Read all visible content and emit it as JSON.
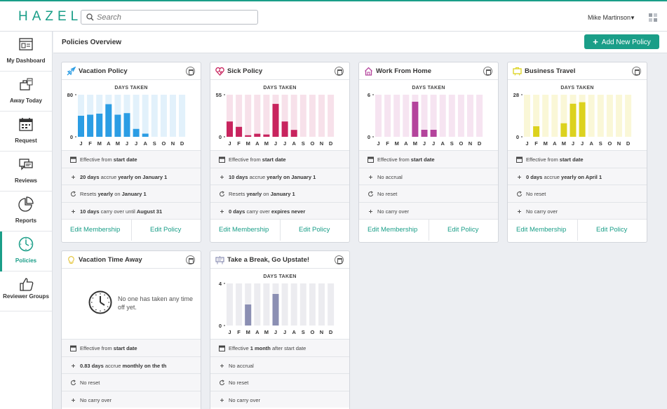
{
  "app": {
    "logo": "HAZEL",
    "accent": "#1a9e88"
  },
  "search": {
    "placeholder": "Search"
  },
  "user": {
    "name": "Mike Martinson"
  },
  "sidebar": {
    "items": [
      {
        "label": "My Dashboard",
        "icon": "dashboard-icon"
      },
      {
        "label": "Away Today",
        "icon": "away-icon"
      },
      {
        "label": "Request",
        "icon": "calendar-icon"
      },
      {
        "label": "Reviews",
        "icon": "chat-icon"
      },
      {
        "label": "Reports",
        "icon": "pie-chart-icon"
      },
      {
        "label": "Policies",
        "icon": "clock-icon",
        "active": true
      },
      {
        "label": "Reviewer Groups",
        "icon": "thumbs-up-icon"
      }
    ]
  },
  "page": {
    "title": "Policies Overview",
    "add_button": "Add New Policy"
  },
  "months": [
    "J",
    "F",
    "M",
    "A",
    "M",
    "J",
    "J",
    "A",
    "S",
    "O",
    "N",
    "D"
  ],
  "chart_heading": "DAYS TAKEN",
  "footer": {
    "edit_membership": "Edit Membership",
    "edit_policy": "Edit Policy"
  },
  "policies": [
    {
      "title": "Vacation Policy",
      "icon": "plane-icon",
      "color": "#2b9de4",
      "light": "#e2f1fb",
      "ymax": "80",
      "ymin": "0",
      "max": 80,
      "values": [
        40,
        42,
        44,
        62,
        42,
        45,
        15,
        6,
        0,
        0,
        0,
        0
      ],
      "rows": [
        {
          "icon": "calendar-icon",
          "parts": [
            [
              "Effective from ",
              false
            ],
            [
              "start date",
              true
            ]
          ]
        },
        {
          "icon": "plus-icon",
          "parts": [
            [
              "20 days",
              true
            ],
            [
              " accrue ",
              false
            ],
            [
              "yearly on January 1",
              true
            ]
          ]
        },
        {
          "icon": "reset-icon",
          "parts": [
            [
              "Resets ",
              false
            ],
            [
              "yearly",
              true
            ],
            [
              " on ",
              false
            ],
            [
              "January 1",
              true
            ]
          ]
        },
        {
          "icon": "plus-icon",
          "parts": [
            [
              "10 days",
              true
            ],
            [
              " carry over until ",
              false
            ],
            [
              "August 31",
              true
            ]
          ]
        }
      ]
    },
    {
      "title": "Sick Policy",
      "icon": "heart-icon",
      "color": "#c8245e",
      "light": "#f7e1ea",
      "ymax": "55",
      "ymin": "0",
      "max": 55,
      "values": [
        20,
        13,
        2,
        4,
        3,
        43,
        20,
        9,
        0,
        0,
        0,
        0
      ],
      "rows": [
        {
          "icon": "calendar-icon",
          "parts": [
            [
              "Effective from ",
              false
            ],
            [
              "start date",
              true
            ]
          ]
        },
        {
          "icon": "plus-icon",
          "parts": [
            [
              "10 days",
              true
            ],
            [
              " accrue ",
              false
            ],
            [
              "yearly on January 1",
              true
            ]
          ]
        },
        {
          "icon": "reset-icon",
          "parts": [
            [
              "Resets ",
              false
            ],
            [
              "yearly",
              true
            ],
            [
              " on ",
              false
            ],
            [
              "January 1",
              true
            ]
          ]
        },
        {
          "icon": "plus-icon",
          "parts": [
            [
              "0 days",
              true
            ],
            [
              " carry over ",
              false
            ],
            [
              "expires never",
              true
            ]
          ]
        }
      ]
    },
    {
      "title": "Work From Home",
      "icon": "house-icon",
      "color": "#b4449c",
      "light": "#f6e4f1",
      "ymax": "6",
      "ymin": "0",
      "max": 6,
      "values": [
        0,
        0,
        0,
        0,
        5,
        1,
        1,
        0,
        0,
        0,
        0,
        0
      ],
      "rows": [
        {
          "icon": "calendar-icon",
          "parts": [
            [
              "Effective from ",
              false
            ],
            [
              "start date",
              true
            ]
          ]
        },
        {
          "icon": "plus-icon",
          "parts": [
            [
              "No accrual",
              false
            ]
          ]
        },
        {
          "icon": "reset-icon",
          "parts": [
            [
              "No reset",
              false
            ]
          ]
        },
        {
          "icon": "plus-icon",
          "parts": [
            [
              "No carry over",
              false
            ]
          ]
        }
      ]
    },
    {
      "title": "Business Travel",
      "icon": "briefcase-icon",
      "color": "#dcd21e",
      "light": "#faf7d7",
      "ymax": "28",
      "ymin": "0",
      "max": 28,
      "values": [
        0,
        7,
        0,
        0,
        9,
        22,
        23,
        0,
        0,
        0,
        0,
        0
      ],
      "rows": [
        {
          "icon": "calendar-icon",
          "parts": [
            [
              "Effective from ",
              false
            ],
            [
              "start date",
              true
            ]
          ]
        },
        {
          "icon": "plus-icon",
          "parts": [
            [
              "0 days",
              true
            ],
            [
              " accrue ",
              false
            ],
            [
              "yearly on April 1",
              true
            ]
          ]
        },
        {
          "icon": "reset-icon",
          "parts": [
            [
              "No reset",
              false
            ]
          ]
        },
        {
          "icon": "plus-icon",
          "parts": [
            [
              "No carry over",
              false
            ]
          ]
        }
      ]
    },
    {
      "title": "Vacation Time Away",
      "icon": "bulb-icon",
      "color": "#e6c94a",
      "light": "#ffffff",
      "empty_message": "No one has taken any time off yet.",
      "rows": [
        {
          "icon": "calendar-icon",
          "parts": [
            [
              "Effective from ",
              false
            ],
            [
              "start date",
              true
            ]
          ]
        },
        {
          "icon": "plus-icon",
          "parts": [
            [
              "0.83 days",
              true
            ],
            [
              " accrue ",
              false
            ],
            [
              "monthly on the th",
              true
            ]
          ]
        },
        {
          "icon": "reset-icon",
          "parts": [
            [
              "No reset",
              false
            ]
          ]
        },
        {
          "icon": "plus-icon",
          "parts": [
            [
              "No carry over",
              false
            ]
          ]
        }
      ]
    },
    {
      "title": "Take a Break, Go Upstate!",
      "icon": "sign-icon",
      "color": "#8b8fb3",
      "light": "#ececf0",
      "ymax": "4",
      "ymin": "0",
      "max": 4,
      "values": [
        0,
        0,
        2,
        0,
        0,
        3,
        0,
        0,
        0,
        0,
        0,
        0
      ],
      "rows": [
        {
          "icon": "calendar-icon",
          "parts": [
            [
              "Effective ",
              false
            ],
            [
              "1 month",
              true
            ],
            [
              " after start date",
              false
            ]
          ]
        },
        {
          "icon": "plus-icon",
          "parts": [
            [
              "No accrual",
              false
            ]
          ]
        },
        {
          "icon": "reset-icon",
          "parts": [
            [
              "No reset",
              false
            ]
          ]
        },
        {
          "icon": "plus-icon",
          "parts": [
            [
              "No carry over",
              false
            ]
          ]
        }
      ]
    }
  ]
}
